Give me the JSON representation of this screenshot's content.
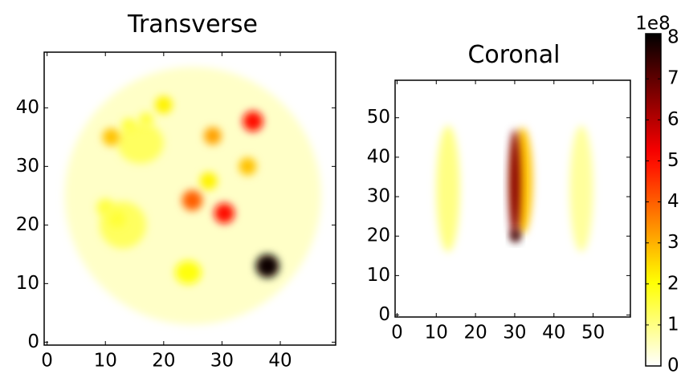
{
  "chart_data": [
    {
      "type": "heatmap",
      "title": "Transverse",
      "xlim": [
        -0.5,
        49.5
      ],
      "ylim": [
        -0.5,
        49.5
      ],
      "xticks": [
        0,
        10,
        20,
        30,
        40
      ],
      "yticks": [
        0,
        10,
        20,
        30,
        40
      ],
      "x": [
        25,
        16,
        13,
        11,
        14,
        17,
        20,
        28.4,
        35.3,
        34.4,
        27.7,
        24.9,
        30.4,
        37.8,
        24.2,
        12,
        10
      ],
      "y": [
        25,
        34,
        20,
        35,
        37,
        38,
        40.5,
        35.2,
        37.7,
        30,
        27.5,
        24.2,
        22,
        13,
        11.9,
        21,
        23
      ],
      "widths": [
        44,
        8,
        8,
        3,
        2.5,
        2.5,
        3,
        3,
        3.5,
        3,
        3,
        3.5,
        3.5,
        4,
        4.5,
        3,
        3
      ],
      "heights": [
        44,
        7,
        8,
        3,
        2.5,
        2.5,
        3,
        3,
        3.5,
        3,
        3,
        3.5,
        3.5,
        4,
        4,
        3,
        3
      ],
      "values": [
        0.45,
        1.3,
        1.3,
        2.8,
        1.5,
        1.5,
        2.2,
        3.2,
        5,
        2.8,
        2.2,
        4,
        5,
        8,
        2,
        1.6,
        1.5
      ]
    },
    {
      "type": "heatmap",
      "title": "Coronal",
      "xlim": [
        -0.5,
        59.5
      ],
      "ylim": [
        -0.5,
        59.5
      ],
      "xticks": [
        0,
        10,
        20,
        30,
        40,
        50
      ],
      "yticks": [
        0,
        10,
        20,
        30,
        40,
        50
      ],
      "x": [
        13,
        47,
        32,
        30,
        30.2
      ],
      "y": [
        32,
        32,
        34,
        33,
        20
      ],
      "widths": [
        6,
        6,
        5,
        3,
        2.5
      ],
      "heights": [
        32,
        32,
        27,
        28,
        3
      ],
      "values": [
        1,
        0.8,
        2.8,
        6.5,
        7.5
      ]
    }
  ],
  "colorbar": {
    "colormap": "hot_r",
    "clim": [
      0,
      8.1
    ],
    "ticks": [
      0,
      1,
      2,
      3,
      4,
      5,
      6,
      7,
      8
    ],
    "offset_label": "1e8"
  }
}
